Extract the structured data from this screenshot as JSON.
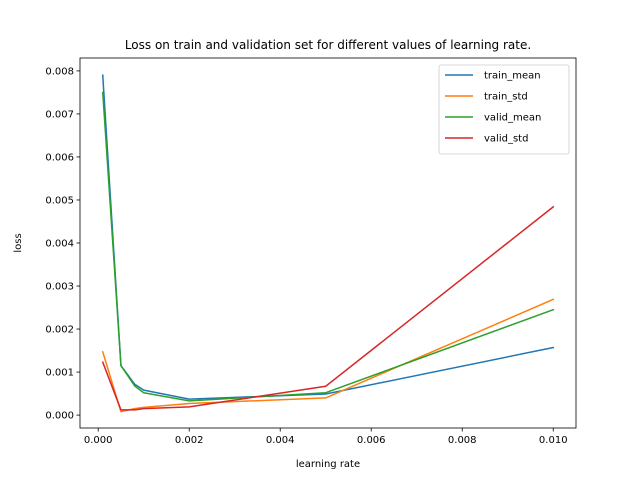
{
  "chart_data": {
    "type": "line",
    "title": "Loss on train and validation set for different values of learning rate.",
    "xlabel": "learning rate",
    "ylabel": "loss",
    "xlim": [
      -0.0004,
      0.0105
    ],
    "ylim": [
      -0.0003,
      0.0083
    ],
    "xticks": [
      0.0,
      0.002,
      0.004,
      0.006,
      0.008,
      0.01
    ],
    "xtick_labels": [
      "0.000",
      "0.002",
      "0.004",
      "0.006",
      "0.008",
      "0.010"
    ],
    "yticks": [
      0.0,
      0.001,
      0.002,
      0.003,
      0.004,
      0.005,
      0.006,
      0.007,
      0.008
    ],
    "ytick_labels": [
      "0.000",
      "0.001",
      "0.002",
      "0.003",
      "0.004",
      "0.005",
      "0.006",
      "0.007",
      "0.008"
    ],
    "grid": false,
    "legend_position": "top-right",
    "x": [
      0.0001,
      0.0005,
      0.0008,
      0.001,
      0.002,
      0.005,
      0.01
    ],
    "series": [
      {
        "name": "train_mean",
        "color": "#1f77b4",
        "values": [
          0.0079,
          0.00115,
          0.00072,
          0.00058,
          0.00037,
          0.00049,
          0.00157
        ]
      },
      {
        "name": "train_std",
        "color": "#ff7f0e",
        "values": [
          0.00147,
          8e-05,
          0.00015,
          0.00018,
          0.00027,
          0.0004,
          0.00269
        ]
      },
      {
        "name": "valid_mean",
        "color": "#2ca02c",
        "values": [
          0.0075,
          0.00115,
          0.00068,
          0.00052,
          0.00033,
          0.00052,
          0.00245
        ]
      },
      {
        "name": "valid_std",
        "color": "#d62728",
        "values": [
          0.00123,
          0.00012,
          0.00012,
          0.00015,
          0.00019,
          0.00067,
          0.00484
        ]
      }
    ]
  }
}
